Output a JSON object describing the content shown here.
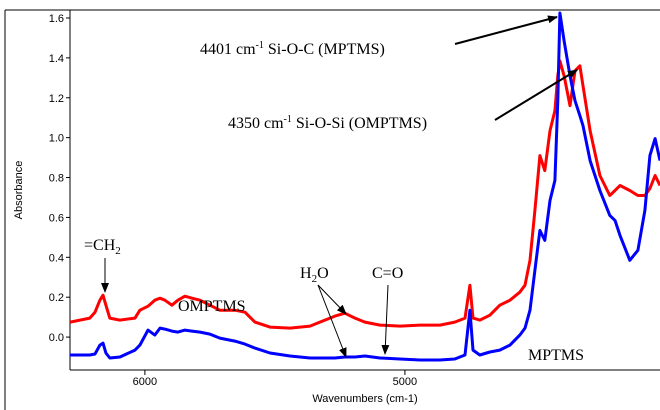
{
  "chart_data": {
    "type": "line",
    "x_label": "Wavenumbers (cm-1)",
    "y_label": "Absorbance",
    "x": [
      6288,
      6212,
      6192,
      6173,
      6161,
      6150,
      6135,
      6096,
      6038,
      6019,
      5988,
      5962,
      5942,
      5923,
      5896,
      5873,
      5846,
      5819,
      5788,
      5750,
      5712,
      5654,
      5615,
      5577,
      5519,
      5442,
      5365,
      5327,
      5269,
      5231,
      5192,
      5154,
      5096,
      5019,
      4942,
      4865,
      4808,
      4769,
      4750,
      4738,
      4712,
      4673,
      4635,
      4596,
      4558,
      4538,
      4519,
      4500,
      4481,
      4462,
      4442,
      4423,
      4412,
      4404,
      4388,
      4365,
      4346,
      4327,
      4315,
      4288,
      4250,
      4212,
      4192,
      4173,
      4135,
      4104,
      4077,
      4058,
      4038,
      4019
    ],
    "series": [
      {
        "name": "OMPTMS",
        "color": "#ff0000",
        "values": [
          0.075,
          0.095,
          0.125,
          0.185,
          0.21,
          0.16,
          0.095,
          0.085,
          0.095,
          0.135,
          0.155,
          0.185,
          0.195,
          0.185,
          0.16,
          0.185,
          0.205,
          0.195,
          0.185,
          0.16,
          0.135,
          0.135,
          0.125,
          0.075,
          0.05,
          0.045,
          0.055,
          0.075,
          0.105,
          0.12,
          0.095,
          0.075,
          0.06,
          0.055,
          0.06,
          0.06,
          0.075,
          0.095,
          0.26,
          0.095,
          0.085,
          0.11,
          0.16,
          0.185,
          0.225,
          0.26,
          0.385,
          0.635,
          0.91,
          0.835,
          1.035,
          1.135,
          1.31,
          1.385,
          1.31,
          1.16,
          1.335,
          1.36,
          1.26,
          1.035,
          0.81,
          0.71,
          0.735,
          0.76,
          0.735,
          0.71,
          0.71,
          0.745,
          0.81,
          0.76
        ]
      },
      {
        "name": "MPTMS",
        "color": "#0000ff",
        "values": [
          -0.09,
          -0.09,
          -0.085,
          -0.04,
          -0.03,
          -0.08,
          -0.105,
          -0.1,
          -0.065,
          -0.04,
          0.035,
          0.01,
          0.045,
          0.04,
          0.03,
          0.025,
          0.035,
          0.03,
          0.025,
          0.015,
          -0.005,
          -0.02,
          -0.035,
          -0.055,
          -0.08,
          -0.095,
          -0.105,
          -0.105,
          -0.105,
          -0.1,
          -0.1,
          -0.095,
          -0.105,
          -0.11,
          -0.115,
          -0.115,
          -0.11,
          -0.09,
          0.135,
          -0.065,
          -0.09,
          -0.075,
          -0.065,
          -0.04,
          0.01,
          0.045,
          0.135,
          0.335,
          0.535,
          0.485,
          0.685,
          0.785,
          1.185,
          1.625,
          1.485,
          1.31,
          1.185,
          1.11,
          1.06,
          0.885,
          0.735,
          0.61,
          0.585,
          0.51,
          0.385,
          0.435,
          0.635,
          0.91,
          0.995,
          0.885
        ]
      }
    ],
    "xlim": [
      6288,
      4019
    ],
    "xticks": [
      6000,
      5000
    ],
    "ylim": [
      -0.165,
      1.64
    ],
    "yticks": [
      {
        "value": 0.0,
        "label": "0.0"
      },
      0.2,
      0.4,
      0.6,
      0.8,
      {
        "value": 1.0,
        "label": "1.0"
      },
      1.2,
      1.4,
      1.6
    ],
    "annotations": [
      {
        "text": "4401 cm",
        "sup": "-1",
        "rest": " Si-O-C (MPTMS)"
      },
      {
        "text": "4350 cm",
        "sup": "-1",
        "rest": " Si-O-Si (OMPTMS)"
      },
      {
        "text": "=CH",
        "sub": "2"
      },
      {
        "text": "H",
        "sub": "2",
        "rest": "O"
      },
      {
        "text": "C=O"
      }
    ]
  }
}
